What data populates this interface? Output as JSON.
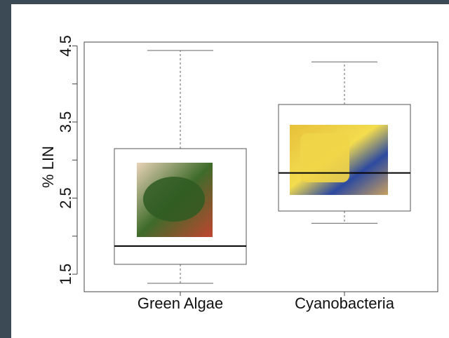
{
  "chart_data": {
    "type": "box",
    "ylabel": "% LIN",
    "categories": [
      "Green Algae",
      "Cyanobacteria"
    ],
    "boxes": [
      {
        "whisker_low": 1.38,
        "q1": 1.63,
        "median": 1.87,
        "q3": 3.15,
        "whisker_high": 4.44
      },
      {
        "whisker_low": 2.17,
        "q1": 2.33,
        "median": 2.83,
        "q3": 3.73,
        "whisker_high": 4.29
      }
    ],
    "ylim": [
      1.27,
      4.55
    ],
    "yticks": [
      1.5,
      2.5,
      3.5,
      4.5
    ],
    "minor_yticks": [
      2,
      3,
      4
    ]
  }
}
